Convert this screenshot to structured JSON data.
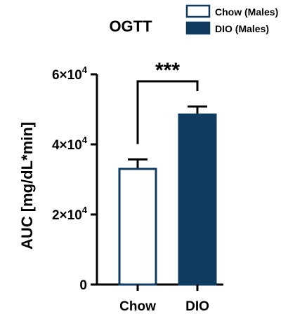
{
  "chart_data": {
    "type": "bar",
    "title": "OGTT",
    "ylabel": "AUC [mg/dL*min]",
    "xlabel": "",
    "categories": [
      "Chow",
      "DIO"
    ],
    "values": [
      33000,
      48500
    ],
    "error": [
      2700,
      2300
    ],
    "ylim": [
      0,
      60000
    ],
    "yticks": [
      {
        "value": 0,
        "base": "0",
        "exp": ""
      },
      {
        "value": 20000,
        "base": "2×10",
        "exp": "4"
      },
      {
        "value": 40000,
        "base": "4×10",
        "exp": "4"
      },
      {
        "value": 60000,
        "base": "6×10",
        "exp": "4"
      }
    ],
    "legend": [
      {
        "label": "Chow (Males)",
        "fill": "#ffffff",
        "stroke": "#0f3b60"
      },
      {
        "label": "DIO (Males)",
        "fill": "#0f3b60",
        "stroke": "#0f3b60"
      }
    ],
    "legend_position": "top-right",
    "significance": {
      "label": "***",
      "between": [
        "Chow",
        "DIO"
      ]
    },
    "grid": false
  }
}
